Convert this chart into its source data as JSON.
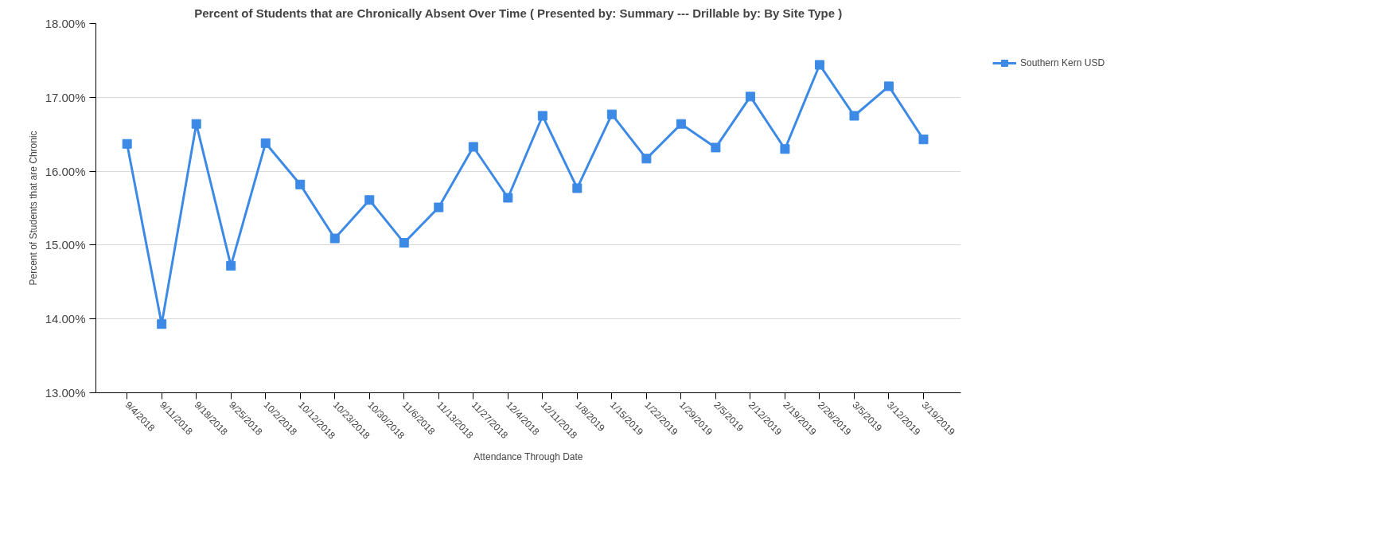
{
  "chart_data": {
    "type": "line",
    "title": "Percent of Students that are Chronically Absent Over Time ( Presented by: Summary    ---    Drillable by: By Site Type )",
    "xlabel": "Attendance Through Date",
    "ylabel": "Percent of Students that are Chronic",
    "categories": [
      "9/4/2018",
      "9/11/2018",
      "9/18/2018",
      "9/25/2018",
      "10/2/2018",
      "10/12/2018",
      "10/23/2018",
      "10/30/2018",
      "11/6/2018",
      "11/13/2018",
      "11/27/2018",
      "12/4/2018",
      "12/11/2018",
      "1/8/2019",
      "1/15/2019",
      "1/22/2019",
      "1/29/2019",
      "2/5/2019",
      "2/12/2019",
      "2/19/2019",
      "2/26/2019",
      "3/5/2019",
      "3/12/2019",
      "3/19/2019"
    ],
    "series": [
      {
        "name": "Southern Kern USD",
        "color": "#3c8ae6",
        "values": [
          16.37,
          13.93,
          16.64,
          14.72,
          16.38,
          15.82,
          15.09,
          15.61,
          15.03,
          15.51,
          16.33,
          15.64,
          16.75,
          15.77,
          16.77,
          16.17,
          16.64,
          16.32,
          17.01,
          16.3,
          17.44,
          16.75,
          17.15,
          16.43
        ]
      }
    ],
    "ylim": [
      13,
      18
    ],
    "yticks": [
      {
        "value": 13,
        "label": "13.00%"
      },
      {
        "value": 14,
        "label": "14.00%"
      },
      {
        "value": 15,
        "label": "15.00%"
      },
      {
        "value": 16,
        "label": "16.00%"
      },
      {
        "value": 17,
        "label": "17.00%"
      },
      {
        "value": 18,
        "label": "18.00%"
      }
    ],
    "grid": "y",
    "legend": "top right",
    "marker": "square",
    "line_style": "solid"
  }
}
